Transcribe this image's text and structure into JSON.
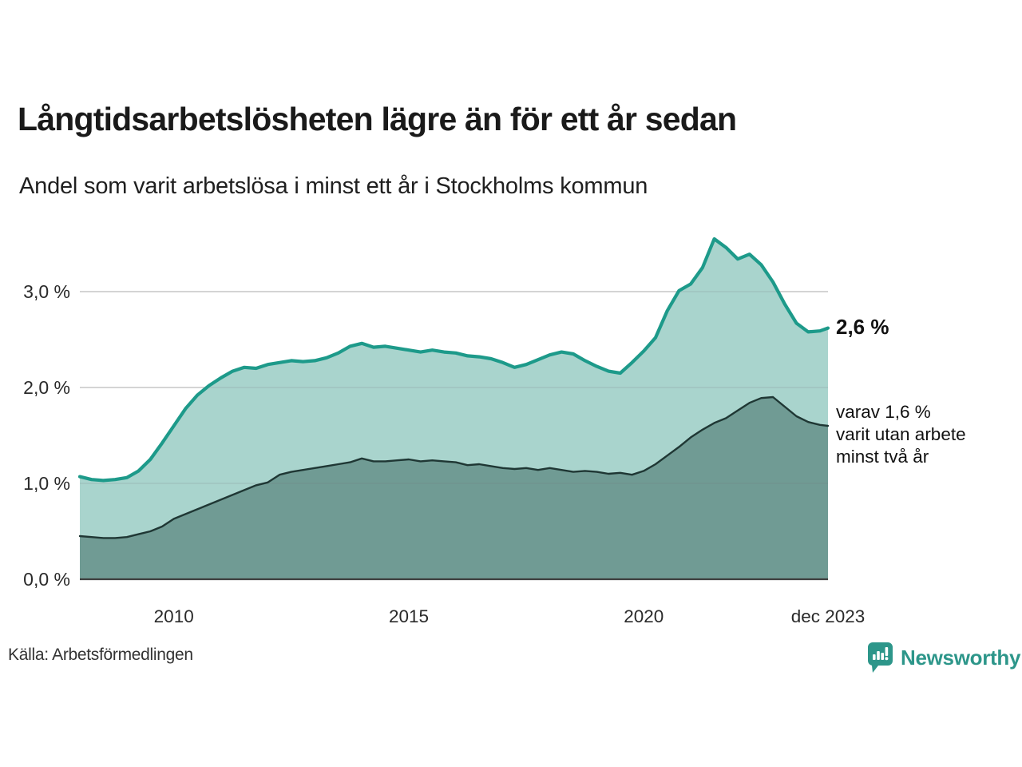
{
  "header": {
    "title": "Långtidsarbetslösheten lägre än för ett år sedan",
    "subtitle": "Andel som varit arbetslösa i minst ett år i Stockholms kommun"
  },
  "annotations": {
    "total_end_label": "2,6 %",
    "two_year_label_lines": [
      "varav 1,6 %",
      "varit utan arbete",
      "minst två år"
    ]
  },
  "footer": {
    "source": "Källa: Arbetsförmedlingen",
    "brand_name": "Newsworthy",
    "logo_icon": "bar-chart-speech-bubble-icon"
  },
  "colors": {
    "total_line": "#1d9a8a",
    "total_fill": "#a9d4cd",
    "two_year_line": "#1f3734",
    "two_year_fill": "#709b94",
    "gridline": "#d9d9d9",
    "axis_line": "#3f3f3f",
    "brand_teal": "#2d968a"
  },
  "chart_data": {
    "type": "area",
    "title": "Långtidsarbetslösheten lägre än för ett år sedan",
    "subtitle": "Andel som varit arbetslösa i minst ett år i Stockholms kommun",
    "unit": "%",
    "grid": "horizontal",
    "legend_position": "right-annotations",
    "xlim": [
      2008.0,
      2023.92
    ],
    "ylim": [
      0,
      3.7
    ],
    "x": [
      2008.0,
      2008.25,
      2008.5,
      2008.75,
      2009.0,
      2009.25,
      2009.5,
      2009.75,
      2010.0,
      2010.25,
      2010.5,
      2010.75,
      2011.0,
      2011.25,
      2011.5,
      2011.75,
      2012.0,
      2012.25,
      2012.5,
      2012.75,
      2013.0,
      2013.25,
      2013.5,
      2013.75,
      2014.0,
      2014.25,
      2014.5,
      2014.75,
      2015.0,
      2015.25,
      2015.5,
      2015.75,
      2016.0,
      2016.25,
      2016.5,
      2016.75,
      2017.0,
      2017.25,
      2017.5,
      2017.75,
      2018.0,
      2018.25,
      2018.5,
      2018.75,
      2019.0,
      2019.25,
      2019.5,
      2019.75,
      2020.0,
      2020.25,
      2020.5,
      2020.75,
      2021.0,
      2021.25,
      2021.5,
      2021.75,
      2022.0,
      2022.25,
      2022.5,
      2022.75,
      2023.0,
      2023.25,
      2023.5,
      2023.75,
      2023.92
    ],
    "series": [
      {
        "name": "Arbetslösa minst ett år",
        "end_value": 2.6,
        "values": [
          1.07,
          1.04,
          1.03,
          1.04,
          1.06,
          1.13,
          1.25,
          1.42,
          1.6,
          1.78,
          1.92,
          2.02,
          2.1,
          2.17,
          2.21,
          2.2,
          2.24,
          2.26,
          2.28,
          2.27,
          2.28,
          2.31,
          2.36,
          2.43,
          2.46,
          2.42,
          2.43,
          2.41,
          2.39,
          2.37,
          2.39,
          2.37,
          2.36,
          2.33,
          2.32,
          2.3,
          2.26,
          2.21,
          2.24,
          2.29,
          2.34,
          2.37,
          2.35,
          2.28,
          2.22,
          2.17,
          2.15,
          2.26,
          2.38,
          2.52,
          2.8,
          3.01,
          3.08,
          3.25,
          3.55,
          3.46,
          3.34,
          3.39,
          3.28,
          3.1,
          2.87,
          2.67,
          2.58,
          2.59,
          2.62
        ]
      },
      {
        "name": "Arbetslösa minst två år",
        "end_value": 1.6,
        "values": [
          0.45,
          0.44,
          0.43,
          0.43,
          0.44,
          0.47,
          0.5,
          0.55,
          0.63,
          0.68,
          0.73,
          0.78,
          0.83,
          0.88,
          0.93,
          0.98,
          1.01,
          1.09,
          1.12,
          1.14,
          1.16,
          1.18,
          1.2,
          1.22,
          1.26,
          1.23,
          1.23,
          1.24,
          1.25,
          1.23,
          1.24,
          1.23,
          1.22,
          1.19,
          1.2,
          1.18,
          1.16,
          1.15,
          1.16,
          1.14,
          1.16,
          1.14,
          1.12,
          1.13,
          1.12,
          1.1,
          1.11,
          1.09,
          1.13,
          1.2,
          1.29,
          1.38,
          1.48,
          1.56,
          1.63,
          1.68,
          1.76,
          1.84,
          1.89,
          1.9,
          1.8,
          1.7,
          1.64,
          1.61,
          1.6
        ]
      }
    ],
    "xticks": [
      {
        "t": 2010.0,
        "label": "2010"
      },
      {
        "t": 2015.0,
        "label": "2015"
      },
      {
        "t": 2020.0,
        "label": "2020"
      },
      {
        "t": 2023.92,
        "label": "dec 2023"
      }
    ],
    "yticks": [
      {
        "v": 0.0,
        "label": "0,0 %"
      },
      {
        "v": 1.0,
        "label": "1,0 %"
      },
      {
        "v": 2.0,
        "label": "2,0 %"
      },
      {
        "v": 3.0,
        "label": "3,0 %"
      }
    ]
  }
}
